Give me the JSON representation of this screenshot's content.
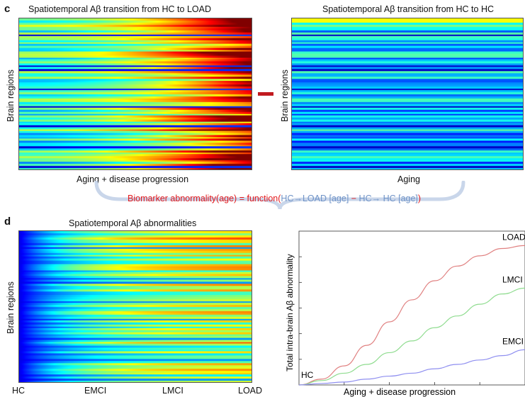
{
  "panel_c": {
    "letter": "c",
    "left_title": "Spatiotemporal Aβ transition from HC to LOAD",
    "right_title": "Spatiotemporal Aβ transition from HC to HC",
    "left_xlabel": "Aging + disease progression",
    "right_xlabel": "Aging",
    "ylabel_left": "Brain regions",
    "ylabel_right": "Brain regions",
    "formula": {
      "part1": "Biomarker abnormality(age) = function(",
      "part2": "HC→LOAD [age]",
      "part3": " − ",
      "part4": "HC→ HC [age]",
      "part5": ")"
    },
    "colors": {
      "minus": "#c11a1f",
      "brace": "#c9d6ea",
      "formula_red": "#e3191c",
      "formula_blue": "#6f93c7"
    }
  },
  "panel_d": {
    "letter": "d",
    "title": "Spatiotemporal Aβ abnormalities",
    "ylabel": "Brain regions",
    "stage_labels": [
      "HC",
      "EMCI",
      "LMCI",
      "LOAD"
    ],
    "chart_data": {
      "type": "line",
      "xlabel": "Aging + disease progression",
      "ylabel": "Total intra-brain Aβ abnormality",
      "start_label": "HC",
      "x": [
        0,
        0.1,
        0.2,
        0.3,
        0.4,
        0.5,
        0.6,
        0.7,
        0.8,
        0.9,
        1.0
      ],
      "xlim": [
        0,
        1
      ],
      "ylim": [
        0,
        1
      ],
      "series": [
        {
          "name": "LOAD",
          "color": "#e08080",
          "values": [
            0,
            0.04,
            0.13,
            0.27,
            0.43,
            0.58,
            0.71,
            0.81,
            0.88,
            0.93,
            0.95
          ]
        },
        {
          "name": "LMCI",
          "color": "#8fdc8f",
          "values": [
            0,
            0.03,
            0.08,
            0.14,
            0.22,
            0.3,
            0.39,
            0.47,
            0.55,
            0.62,
            0.66
          ]
        },
        {
          "name": "EMCI",
          "color": "#8f8ff0",
          "values": [
            0,
            0.01,
            0.02,
            0.04,
            0.06,
            0.08,
            0.11,
            0.14,
            0.17,
            0.2,
            0.24
          ]
        }
      ],
      "grid": false
    }
  }
}
